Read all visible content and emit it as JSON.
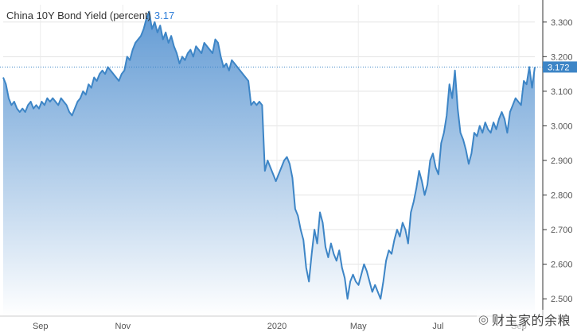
{
  "chart_data": {
    "type": "area",
    "title": "China 10Y Bond Yield (percent)",
    "title_value": "3.17",
    "current_value_label": "3.172",
    "ylim": [
      2.45,
      3.35
    ],
    "y_ticks": [
      2.5,
      2.6,
      2.7,
      2.8,
      2.9,
      3.0,
      3.1,
      3.2,
      3.3
    ],
    "y_tick_labels": [
      "2.500",
      "2.600",
      "2.700",
      "2.800",
      "2.900",
      "3.000",
      "3.100",
      "3.200",
      "3.300"
    ],
    "x_tick_labels": [
      "Sep",
      "Nov",
      "2020",
      "May",
      "Jul",
      "Sep"
    ],
    "grid": true,
    "line_color": "#3d85c6",
    "fill_top_color": "#5b96d2",
    "fill_bottom_color": "#ffffff",
    "series": [
      {
        "values": [
          3.14,
          3.12,
          3.08,
          3.06,
          3.07,
          3.05,
          3.04,
          3.05,
          3.04,
          3.06,
          3.07,
          3.05,
          3.06,
          3.05,
          3.07,
          3.06,
          3.08,
          3.07,
          3.08,
          3.07,
          3.06,
          3.08,
          3.07,
          3.06,
          3.04,
          3.03,
          3.05,
          3.07,
          3.08,
          3.1,
          3.09,
          3.12,
          3.11,
          3.14,
          3.13,
          3.15,
          3.16,
          3.15,
          3.17,
          3.16,
          3.15,
          3.14,
          3.13,
          3.15,
          3.16,
          3.2,
          3.19,
          3.22,
          3.24,
          3.25,
          3.26,
          3.28,
          3.31,
          3.33,
          3.28,
          3.3,
          3.27,
          3.29,
          3.25,
          3.27,
          3.24,
          3.26,
          3.23,
          3.21,
          3.18,
          3.2,
          3.19,
          3.21,
          3.22,
          3.2,
          3.23,
          3.22,
          3.21,
          3.24,
          3.23,
          3.22,
          3.21,
          3.25,
          3.24,
          3.2,
          3.17,
          3.18,
          3.16,
          3.19,
          3.18,
          3.17,
          3.16,
          3.15,
          3.14,
          3.13,
          3.06,
          3.07,
          3.06,
          3.07,
          3.06,
          2.87,
          2.9,
          2.88,
          2.86,
          2.84,
          2.86,
          2.88,
          2.9,
          2.91,
          2.89,
          2.85,
          2.76,
          2.74,
          2.7,
          2.67,
          2.59,
          2.55,
          2.63,
          2.7,
          2.66,
          2.75,
          2.72,
          2.65,
          2.62,
          2.66,
          2.63,
          2.61,
          2.64,
          2.59,
          2.56,
          2.5,
          2.55,
          2.57,
          2.55,
          2.54,
          2.57,
          2.6,
          2.58,
          2.55,
          2.52,
          2.54,
          2.52,
          2.5,
          2.55,
          2.61,
          2.64,
          2.63,
          2.67,
          2.7,
          2.68,
          2.72,
          2.7,
          2.66,
          2.75,
          2.78,
          2.82,
          2.87,
          2.84,
          2.8,
          2.83,
          2.9,
          2.92,
          2.88,
          2.86,
          2.95,
          2.98,
          3.03,
          3.12,
          3.08,
          3.16,
          3.05,
          2.98,
          2.96,
          2.93,
          2.89,
          2.92,
          2.98,
          2.97,
          3.0,
          2.98,
          3.01,
          2.99,
          2.98,
          3.01,
          2.99,
          3.02,
          3.04,
          3.02,
          2.98,
          3.04,
          3.06,
          3.08,
          3.07,
          3.06,
          3.13,
          3.12,
          3.17,
          3.11,
          3.17
        ]
      }
    ]
  },
  "watermark": {
    "text": "财主家的余粮",
    "icon": "wechat-icon"
  }
}
